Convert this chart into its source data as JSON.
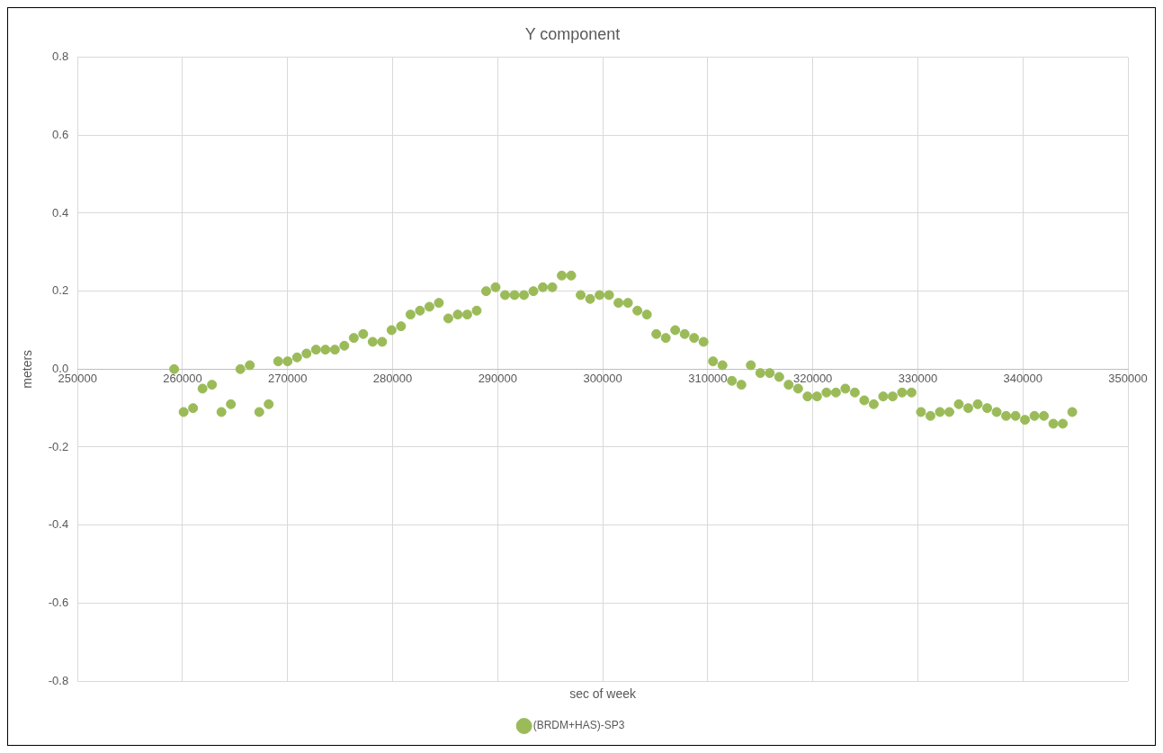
{
  "chart_data": {
    "type": "scatter",
    "title": "Y component",
    "xlabel": "sec of week",
    "ylabel": "meters",
    "xlim": [
      250000,
      350000
    ],
    "xticks": [
      250000,
      260000,
      270000,
      280000,
      290000,
      300000,
      310000,
      320000,
      330000,
      340000,
      350000
    ],
    "ylim": [
      -0.8,
      0.8
    ],
    "yticks": [
      -0.8,
      -0.6,
      -0.4,
      -0.2,
      {
        "value": 0,
        "label": "0.0"
      },
      0.2,
      0.4,
      0.6,
      0.8
    ],
    "grid": true,
    "legend": "bottom",
    "marker": "circle",
    "series": [
      {
        "name": "(BRDM+HAS)-SP3",
        "color": "#9bbb59",
        "x": [
          259200,
          260100,
          261000,
          261900,
          262800,
          263700,
          264600,
          265500,
          266400,
          267300,
          268200,
          269100,
          270000,
          270900,
          271800,
          272700,
          273600,
          274500,
          275400,
          276300,
          277200,
          278100,
          279000,
          279900,
          280800,
          281700,
          282600,
          283500,
          284400,
          285300,
          286200,
          287100,
          288000,
          288900,
          289800,
          290700,
          291600,
          292500,
          293400,
          294300,
          295200,
          296100,
          297000,
          297900,
          298800,
          299700,
          300600,
          301500,
          302400,
          303300,
          304200,
          305100,
          306000,
          306900,
          307800,
          308700,
          309600,
          310500,
          311400,
          312300,
          313200,
          314100,
          315000,
          315900,
          316800,
          317700,
          318600,
          319500,
          320400,
          321300,
          322200,
          323100,
          324000,
          324900,
          325800,
          326700,
          327600,
          328500,
          329400,
          330300,
          331200,
          332100,
          333000,
          333900,
          334800,
          335700,
          336600,
          337500,
          338400,
          339300,
          340200,
          341100,
          342000,
          342900,
          343800,
          344700
        ],
        "values": [
          0.0,
          -0.11,
          -0.1,
          -0.05,
          -0.04,
          -0.11,
          -0.09,
          0.0,
          0.01,
          -0.11,
          -0.09,
          0.02,
          0.02,
          0.03,
          0.04,
          0.05,
          0.05,
          0.05,
          0.06,
          0.08,
          0.09,
          0.07,
          0.07,
          0.1,
          0.11,
          0.14,
          0.15,
          0.16,
          0.17,
          0.13,
          0.14,
          0.14,
          0.15,
          0.2,
          0.21,
          0.19,
          0.19,
          0.19,
          0.2,
          0.21,
          0.21,
          0.24,
          0.24,
          0.19,
          0.18,
          0.19,
          0.19,
          0.17,
          0.17,
          0.15,
          0.14,
          0.09,
          0.08,
          0.1,
          0.09,
          0.08,
          0.07,
          0.02,
          0.01,
          -0.03,
          -0.04,
          0.01,
          -0.01,
          -0.01,
          -0.02,
          -0.04,
          -0.05,
          -0.07,
          -0.07,
          -0.06,
          -0.06,
          -0.05,
          -0.06,
          -0.08,
          -0.09,
          -0.07,
          -0.07,
          -0.06,
          -0.06,
          -0.11,
          -0.12,
          -0.11,
          -0.11,
          -0.09,
          -0.1,
          -0.09,
          -0.1,
          -0.11,
          -0.12,
          -0.12,
          -0.13,
          -0.12,
          -0.12,
          -0.14,
          -0.14,
          -0.11
        ]
      }
    ]
  }
}
